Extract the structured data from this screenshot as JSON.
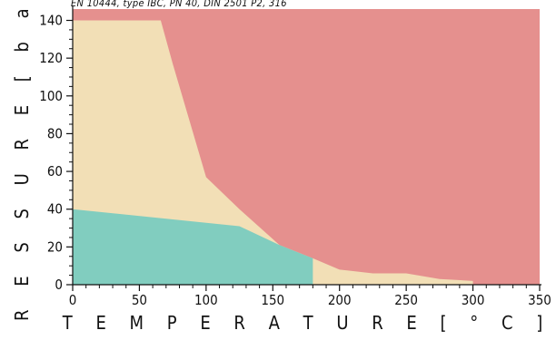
{
  "chart_data": {
    "type": "area",
    "title": "EN 10444, type IBC, PN 40, DIN 2501 P2, 316",
    "xlabel": "T E M P E R A T U R E   [ ° C ]",
    "ylabel": "P R E S S U R E   [ b a r ]",
    "xlim": [
      0,
      350
    ],
    "ylim": [
      0,
      146
    ],
    "xticks": [
      0,
      50,
      100,
      150,
      200,
      250,
      300,
      350
    ],
    "yticks": [
      0,
      20,
      40,
      60,
      80,
      100,
      120,
      140
    ],
    "grid": false,
    "background_color": "#e5908e",
    "series": [
      {
        "color": "#f2dfb6",
        "x": [
          0,
          66,
          75,
          100,
          125,
          155,
          180,
          200,
          225,
          250,
          275,
          300
        ],
        "y": [
          140,
          140,
          117,
          57,
          40,
          21,
          14,
          8,
          6,
          6,
          3,
          2
        ]
      },
      {
        "color": "#81cdbf",
        "x": [
          0,
          125,
          155,
          180,
          180
        ],
        "y": [
          40,
          31,
          21,
          14,
          0
        ]
      }
    ]
  }
}
